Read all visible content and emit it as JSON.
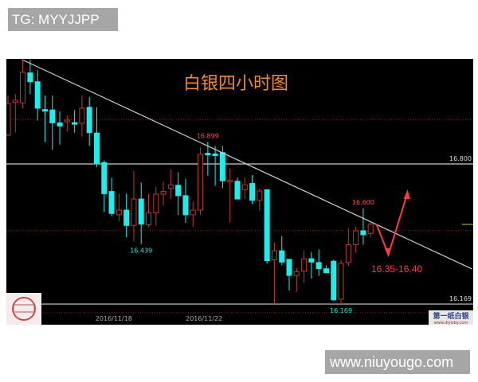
{
  "overlay": {
    "tg_label": "TG: MYYJJPP",
    "site_label": "www.niuyougo.com"
  },
  "watermark": {
    "brand_text": "第一纸白银",
    "brand_url": "www.diyizby.com"
  },
  "colors": {
    "up": "#c0392b",
    "down": "#19f0ee",
    "title": "#f08a2c",
    "background": "#000000",
    "annotation": "#ff3b3b"
  },
  "chart_data": {
    "type": "candlestick",
    "title": "白银四小时图",
    "x_tick_labels": [
      {
        "index": 14.3,
        "label": "2016/11/18"
      },
      {
        "index": 26.5,
        "label": "2016/11/22"
      }
    ],
    "y_axis_labels": [
      "16.800",
      "16.169"
    ],
    "ohlc": [
      [
        16.929,
        17.108,
        16.929,
        17.072
      ],
      [
        17.078,
        17.114,
        16.941,
        17.087
      ],
      [
        17.075,
        17.264,
        17.049,
        17.213
      ],
      [
        17.21,
        17.27,
        17.114,
        17.17
      ],
      [
        17.17,
        17.222,
        16.995,
        17.051
      ],
      [
        17.045,
        17.108,
        16.899,
        17.039
      ],
      [
        17.043,
        17.108,
        16.863,
        16.985
      ],
      [
        16.985,
        17.037,
        16.887,
        16.971
      ],
      [
        16.993,
        17.019,
        16.947,
        16.997
      ],
      [
        16.986,
        17.043,
        16.941,
        16.98
      ],
      [
        16.983,
        17.108,
        16.923,
        17.051
      ],
      [
        17.055,
        17.102,
        16.881,
        16.941
      ],
      [
        16.939,
        17.055,
        16.786,
        16.8
      ],
      [
        16.806,
        16.816,
        16.583,
        16.666
      ],
      [
        16.676,
        16.738,
        16.565,
        16.577
      ],
      [
        16.571,
        16.666,
        16.541,
        16.592
      ],
      [
        16.592,
        16.666,
        16.469,
        16.523
      ],
      [
        16.523,
        16.768,
        16.451,
        16.642
      ],
      [
        16.642,
        16.716,
        16.439,
        16.529
      ],
      [
        16.526,
        16.666,
        16.517,
        16.58
      ],
      [
        16.58,
        16.696,
        16.523,
        16.664
      ],
      [
        16.664,
        16.72,
        16.612,
        16.676
      ],
      [
        16.69,
        16.776,
        16.642,
        16.706
      ],
      [
        16.704,
        16.762,
        16.571,
        16.657
      ],
      [
        16.657,
        16.732,
        16.535,
        16.571
      ],
      [
        16.571,
        16.63,
        16.517,
        16.592
      ],
      [
        16.592,
        16.875,
        16.571,
        16.843
      ],
      [
        16.848,
        16.899,
        16.747,
        16.843
      ],
      [
        16.845,
        16.881,
        16.702,
        16.839
      ],
      [
        16.851,
        16.881,
        16.69,
        16.724
      ],
      [
        16.72,
        16.78,
        16.537,
        16.726
      ],
      [
        16.722,
        16.738,
        16.642,
        16.642
      ],
      [
        16.684,
        16.738,
        16.642,
        16.706
      ],
      [
        16.712,
        16.75,
        16.618,
        16.636
      ],
      [
        16.636,
        16.69,
        16.589,
        16.678
      ],
      [
        16.684,
        16.684,
        16.35,
        16.364
      ],
      [
        16.368,
        16.445,
        16.164,
        16.409
      ],
      [
        16.409,
        16.475,
        16.344,
        16.358
      ],
      [
        16.37,
        16.373,
        16.23,
        16.298
      ],
      [
        16.298,
        16.332,
        16.224,
        16.314
      ],
      [
        16.317,
        16.409,
        16.266,
        16.373
      ],
      [
        16.373,
        16.403,
        16.284,
        16.358
      ],
      [
        16.356,
        16.415,
        16.296,
        16.328
      ],
      [
        16.328,
        16.344,
        16.308,
        16.31
      ],
      [
        16.362,
        16.368,
        16.182,
        16.188
      ],
      [
        16.191,
        16.368,
        16.169,
        16.352
      ],
      [
        16.356,
        16.511,
        16.338,
        16.436
      ],
      [
        16.436,
        16.517,
        16.4,
        16.499
      ],
      [
        16.499,
        16.6,
        16.436,
        16.481
      ],
      [
        16.487,
        16.535,
        16.469,
        16.529
      ]
    ],
    "point_labels": [
      {
        "index": 18,
        "price": 16.439,
        "label": "16.439",
        "position": "below",
        "color": "#19f0ee"
      },
      {
        "index": 27,
        "price": 16.899,
        "label": "16.899",
        "position": "above",
        "color": "#ff4d4d"
      },
      {
        "index": 48,
        "price": 16.6,
        "label": "16.600",
        "position": "above",
        "color": "#ff4d4d"
      },
      {
        "index": 45,
        "price": 16.169,
        "label": "16.169",
        "position": "below",
        "color": "#19f0ee"
      }
    ],
    "horizontal_lines": [
      {
        "price": 16.8,
        "style": "solid",
        "color": "#cccccc"
      },
      {
        "price": 16.169,
        "style": "solid",
        "color": "#cccccc"
      },
      {
        "price": 17.0,
        "style": "dotted",
        "color": "#8b1a1a"
      },
      {
        "price": 16.5,
        "style": "dotted",
        "color": "#8b1a1a"
      },
      {
        "price": 16.13,
        "style": "dotted",
        "color": "#8b1a1a"
      }
    ],
    "trendline": [
      {
        "index": 1.9,
        "price": 17.27
      },
      {
        "index": 62.7,
        "price": 16.327
      }
    ],
    "forecast_path": [
      {
        "index": 49.8,
        "price": 16.528
      },
      {
        "index": 51.4,
        "price": 16.391
      },
      {
        "index": 54.0,
        "price": 16.671
      }
    ],
    "forecast_label": "16.35-16.40"
  }
}
